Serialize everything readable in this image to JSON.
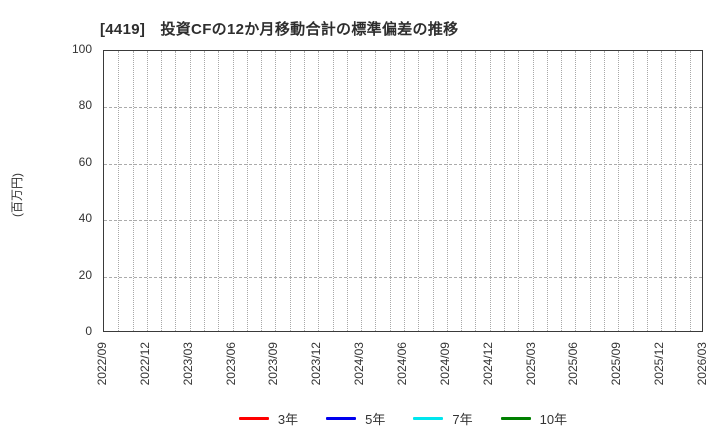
{
  "page": {
    "background": "#ffffff"
  },
  "chart_data": {
    "type": "line",
    "title": "[4419]　投資CFの12か月移動合計の標準偏差の推移",
    "ylabel": "(百万円)",
    "ylim": [
      0,
      100
    ],
    "yticks": [
      0,
      20,
      40,
      60,
      80,
      100
    ],
    "x_tick_labels": [
      "2022/09",
      "2022/12",
      "2023/03",
      "2023/06",
      "2023/09",
      "2023/12",
      "2024/03",
      "2024/06",
      "2024/09",
      "2024/12",
      "2025/03",
      "2025/06",
      "2025/09",
      "2025/12",
      "2026/03"
    ],
    "x_months_per_labeled_tick": 3,
    "x_minor_gridlines": "monthly",
    "grid": {
      "on": true,
      "style": "dotted",
      "color": "#a8a8a8"
    },
    "frame_color": "#3a3a3a",
    "text_color": "#333333",
    "legend_position": "bottom-center",
    "series": [
      {
        "name": "3年",
        "color": "#ff0000",
        "values": []
      },
      {
        "name": "5年",
        "color": "#0000ee",
        "values": []
      },
      {
        "name": "7年",
        "color": "#00e6ee",
        "values": []
      },
      {
        "name": "10年",
        "color": "#008000",
        "values": []
      }
    ]
  }
}
